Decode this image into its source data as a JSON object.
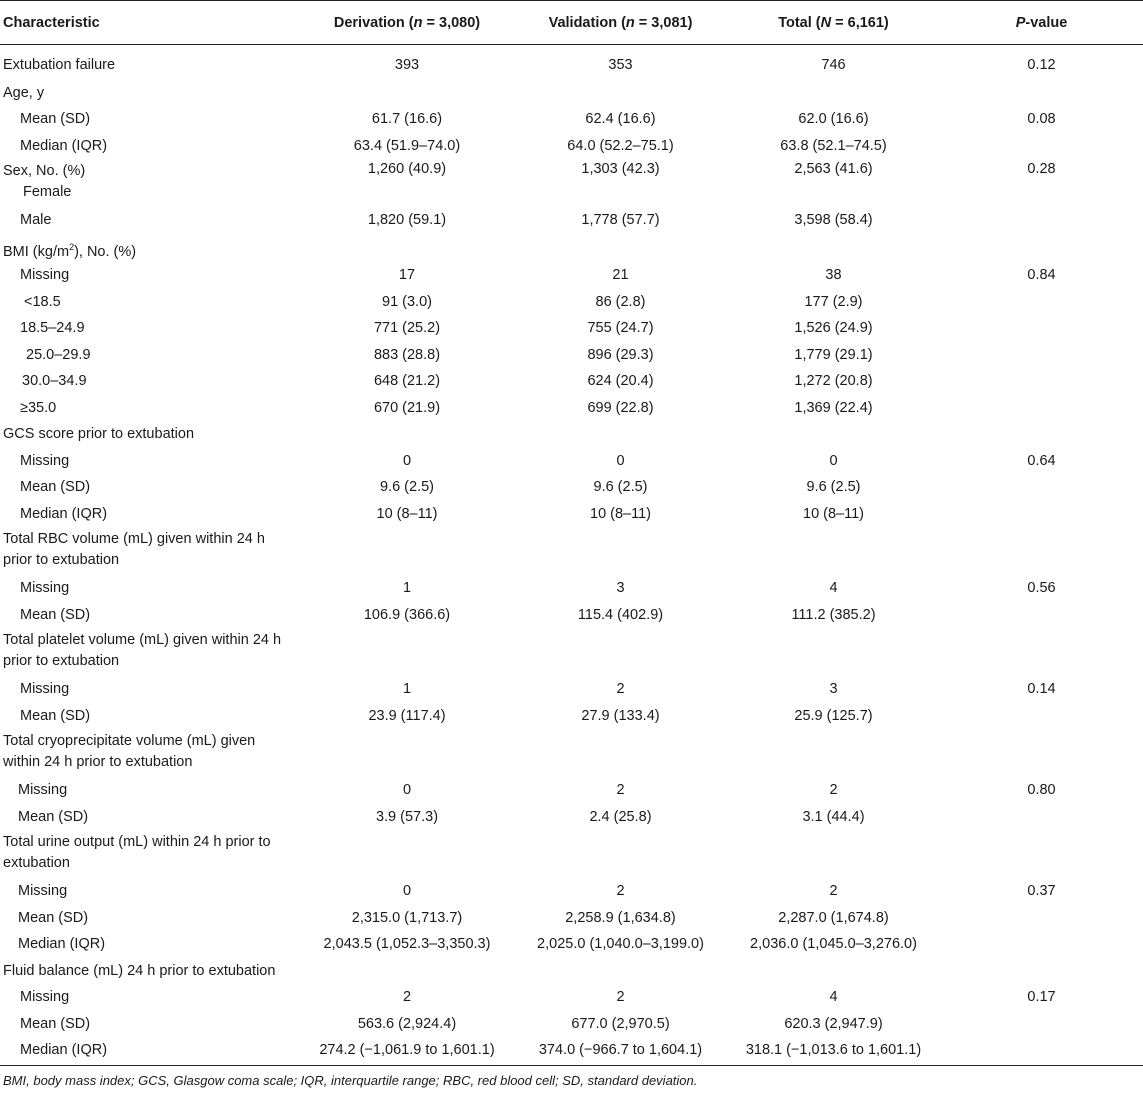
{
  "headers": {
    "characteristic": "Characteristic",
    "derivation": "Derivation (n = 3,080)",
    "validation": "Validation (n = 3,081)",
    "total": "Total (N = 6,161)",
    "pvalue": "P-value"
  },
  "rows": [
    {
      "label": "Extubation failure",
      "d": "393",
      "v": "353",
      "t": "746",
      "p": "0.12"
    },
    {
      "label": "Age, y",
      "d": "",
      "v": "",
      "t": "",
      "p": ""
    },
    {
      "label": "Mean (SD)",
      "d": "61.7 (16.6)",
      "v": "62.4 (16.6)",
      "t": "62.0 (16.6)",
      "p": "0.08"
    },
    {
      "label": "Median (IQR)",
      "d": "63.4 (51.9–74.0)",
      "v": "64.0 (52.2–75.1)",
      "t": "63.8 (52.1–74.5)",
      "p": ""
    },
    {
      "label": "Sex, No. (%)",
      "label2": "Female",
      "d": "1,260 (40.9)",
      "v": "1,303 (42.3)",
      "t": "2,563 (41.6)",
      "p": "0.28"
    },
    {
      "label": "Male",
      "d": "1,820 (59.1)",
      "v": "1,778 (57.7)",
      "t": "3,598 (58.4)",
      "p": ""
    },
    {
      "label_pre": "BMI (kg/m",
      "label_sup": "2",
      "label_post": "), No. (%)",
      "d": "",
      "v": "",
      "t": "",
      "p": ""
    },
    {
      "label": "Missing",
      "d": "17",
      "v": "21",
      "t": "38",
      "p": "0.84"
    },
    {
      "label": "<18.5",
      "d": "91 (3.0)",
      "v": "86 (2.8)",
      "t": "177 (2.9)",
      "p": ""
    },
    {
      "label": "18.5–24.9",
      "d": "771 (25.2)",
      "v": "755 (24.7)",
      "t": "1,526 (24.9)",
      "p": ""
    },
    {
      "label": "25.0–29.9",
      "d": "883 (28.8)",
      "v": "896 (29.3)",
      "t": "1,779 (29.1)",
      "p": ""
    },
    {
      "label": "30.0–34.9",
      "d": "648 (21.2)",
      "v": "624 (20.4)",
      "t": "1,272 (20.8)",
      "p": ""
    },
    {
      "label": "≥35.0",
      "d": "670 (21.9)",
      "v": "699 (22.8)",
      "t": "1,369 (22.4)",
      "p": ""
    },
    {
      "label": "GCS score prior to extubation",
      "d": "",
      "v": "",
      "t": "",
      "p": ""
    },
    {
      "label": "Missing",
      "d": "0",
      "v": "0",
      "t": "0",
      "p": "0.64"
    },
    {
      "label": "Mean (SD)",
      "d": "9.6 (2.5)",
      "v": "9.6 (2.5)",
      "t": "9.6 (2.5)",
      "p": ""
    },
    {
      "label": "Median (IQR)",
      "d": "10 (8–11)",
      "v": "10 (8–11)",
      "t": "10 (8–11)",
      "p": ""
    },
    {
      "label": "Total RBC volume (mL) given within 24 h",
      "label2": "prior to extubation",
      "d": "",
      "v": "",
      "t": "",
      "p": ""
    },
    {
      "label": "Missing",
      "d": "1",
      "v": "3",
      "t": "4",
      "p": "0.56"
    },
    {
      "label": "Mean (SD)",
      "d": "106.9 (366.6)",
      "v": "115.4 (402.9)",
      "t": "111.2 (385.2)",
      "p": ""
    },
    {
      "label": "Total platelet volume (mL) given within 24 h",
      "label2": "prior to extubation",
      "d": "",
      "v": "",
      "t": "",
      "p": ""
    },
    {
      "label": "Missing",
      "d": "1",
      "v": "2",
      "t": "3",
      "p": "0.14"
    },
    {
      "label": "Mean (SD)",
      "d": "23.9 (117.4)",
      "v": "27.9 (133.4)",
      "t": "25.9 (125.7)",
      "p": ""
    },
    {
      "label": "Total cryoprecipitate volume (mL) given",
      "label2": "within 24 h prior to extubation",
      "d": "",
      "v": "",
      "t": "",
      "p": ""
    },
    {
      "label": "Missing",
      "d": "0",
      "v": "2",
      "t": "2",
      "p": "0.80"
    },
    {
      "label": "Mean (SD)",
      "d": "3.9 (57.3)",
      "v": "2.4 (25.8)",
      "t": "3.1 (44.4)",
      "p": ""
    },
    {
      "label": "Total urine output (mL) within 24 h prior to",
      "label2": "extubation",
      "d": "",
      "v": "",
      "t": "",
      "p": ""
    },
    {
      "label": "Missing",
      "d": "0",
      "v": "2",
      "t": "2",
      "p": "0.37"
    },
    {
      "label": "Mean (SD)",
      "d": "2,315.0 (1,713.7)",
      "v": "2,258.9 (1,634.8)",
      "t": "2,287.0 (1,674.8)",
      "p": ""
    },
    {
      "label": "Median (IQR)",
      "d": "2,043.5 (1,052.3–3,350.3)",
      "v": "2,025.0 (1,040.0–3,199.0)",
      "t": "2,036.0 (1,045.0–3,276.0)",
      "p": ""
    },
    {
      "label": "Fluid balance (mL) 24 h prior to extubation",
      "d": "",
      "v": "",
      "t": "",
      "p": ""
    },
    {
      "label": "Missing",
      "d": "2",
      "v": "2",
      "t": "4",
      "p": "0.17"
    },
    {
      "label": "Mean (SD)",
      "d": "563.6 (2,924.4)",
      "v": "677.0 (2,970.5)",
      "t": "620.3 (2,947.9)",
      "p": ""
    },
    {
      "label": "Median (IQR)",
      "d": "274.2 (−1,061.9 to 1,601.1)",
      "v": "374.0 (−966.7 to 1,604.1)",
      "t": "318.1 (−1,013.6 to 1,601.1)",
      "p": ""
    }
  ],
  "footnote": "BMI, body mass index; GCS, Glasgow coma scale; IQR, interquartile range; RBC, red blood cell; SD, standard deviation."
}
